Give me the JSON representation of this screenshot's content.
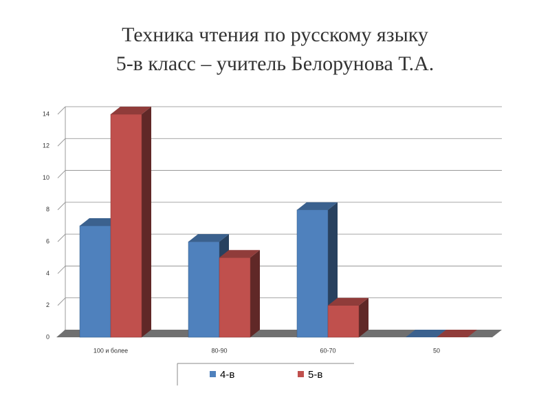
{
  "chart_data": {
    "type": "bar3d",
    "title": "Техника чтения по русскому языку",
    "subtitle": "5-в класс – учитель Белорунова Т.А.",
    "categories": [
      "100 и более",
      "80-90",
      "60-70",
      "50"
    ],
    "series": [
      {
        "name": "4-в",
        "color": "#4f81bd",
        "values": [
          7,
          6,
          8,
          0
        ]
      },
      {
        "name": "5-в",
        "color": "#c0504d",
        "values": [
          14,
          5,
          2,
          0
        ]
      }
    ],
    "ylim": [
      0,
      14
    ],
    "yticks": [
      0,
      2,
      4,
      6,
      8,
      10,
      12,
      14
    ],
    "grid": true
  }
}
